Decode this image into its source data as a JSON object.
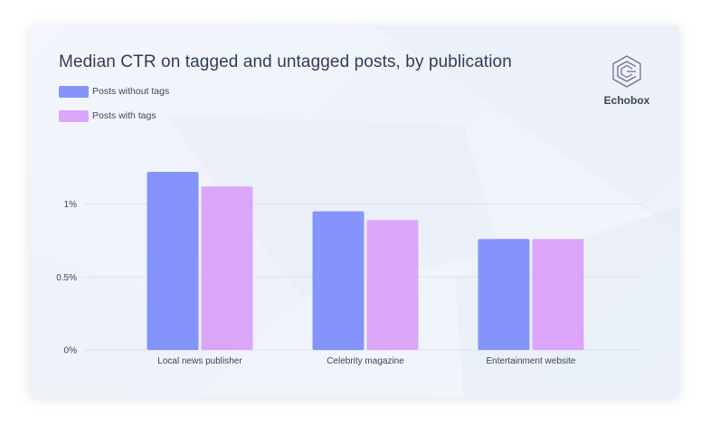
{
  "title": "Median CTR on tagged and untagged posts, by publication",
  "brand": {
    "name": "Echobox",
    "icon": "echobox-logo-icon"
  },
  "colors": {
    "without_tags": "#8494fb",
    "with_tags": "#dba6f8",
    "grid": "#dde2ec",
    "axis_text": "#3b4659"
  },
  "legend": [
    {
      "label": "Posts without tags",
      "color": "#8494fb"
    },
    {
      "label": "Posts with tags",
      "color": "#dba6f8"
    }
  ],
  "chart_data": {
    "type": "bar",
    "title": "Median CTR on tagged and untagged posts, by publication",
    "categories": [
      "Local news publisher",
      "Celebrity magazine",
      "Entertainment website"
    ],
    "series": [
      {
        "name": "Posts without tags",
        "values": [
          1.22,
          0.95,
          0.76
        ]
      },
      {
        "name": "Posts with tags",
        "values": [
          1.12,
          0.89,
          0.76
        ]
      }
    ],
    "yticks": [
      0,
      0.5,
      1
    ],
    "ytick_labels": [
      "0%",
      "0.5%",
      "1%"
    ],
    "ylim": [
      0,
      1.22
    ],
    "xlabel": "",
    "ylabel": "",
    "grid": true,
    "legend_position": "top-left"
  }
}
